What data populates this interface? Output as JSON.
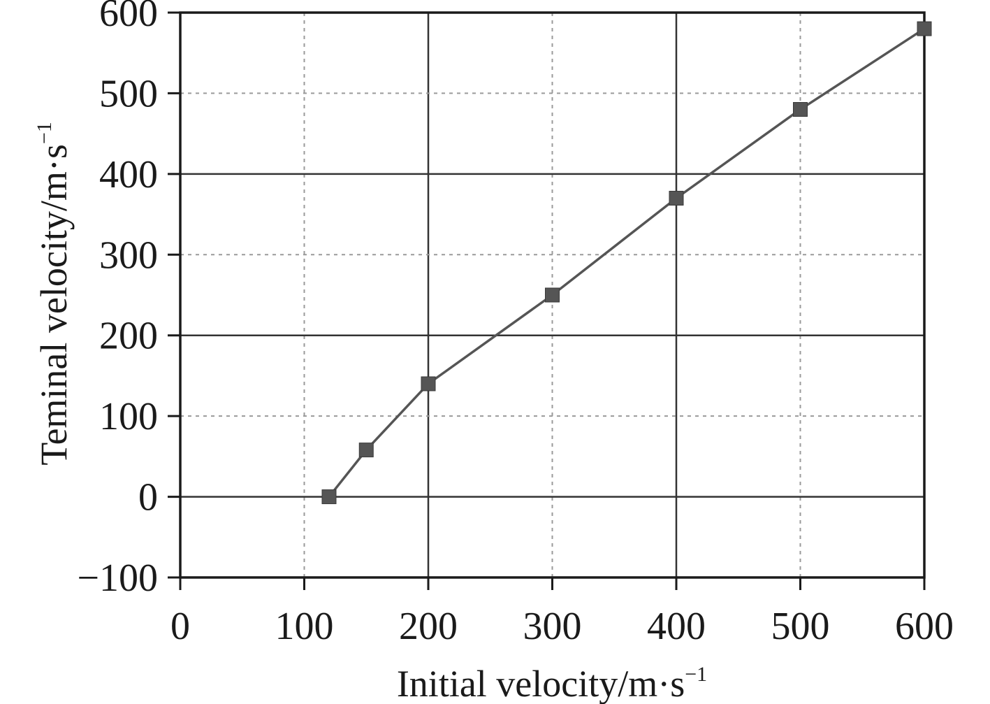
{
  "chart_data": {
    "type": "line",
    "xlabel": "Initial velocity/m·s",
    "xlabel_sup": "−1",
    "ylabel": "Teminal velocity/m·s",
    "ylabel_sup": "−1",
    "xlim": [
      0,
      600
    ],
    "ylim": [
      -100,
      600
    ],
    "xticks": [
      0,
      100,
      200,
      300,
      400,
      500,
      600
    ],
    "yticks": [
      -100,
      0,
      100,
      200,
      300,
      400,
      500,
      600
    ],
    "xtick_labels": [
      "0",
      "100",
      "200",
      "300",
      "400",
      "500",
      "600"
    ],
    "ytick_labels": [
      "−100",
      "0",
      "100",
      "200",
      "300",
      "400",
      "500",
      "600"
    ],
    "grid": true,
    "series": [
      {
        "marker": "square",
        "color": "#555555",
        "x": [
          120,
          150,
          200,
          300,
          400,
          500,
          600
        ],
        "y": [
          0,
          58,
          140,
          250,
          370,
          480,
          580
        ]
      }
    ]
  }
}
